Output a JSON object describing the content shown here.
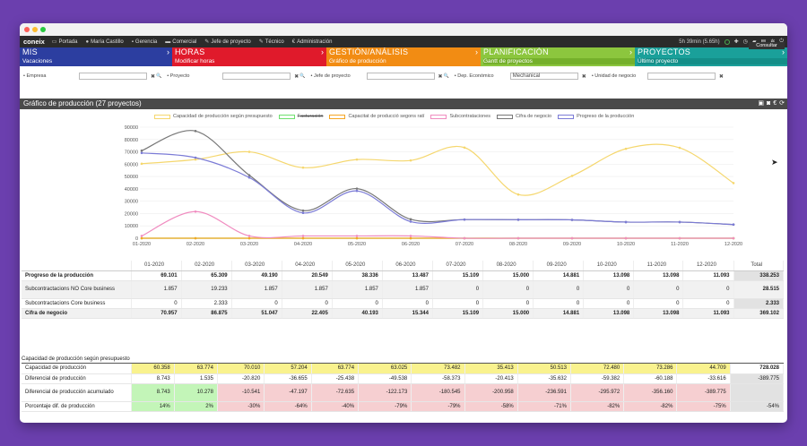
{
  "topnav": {
    "logo": "coneix",
    "items": [
      {
        "label": "Portada",
        "icon": "monitor-icon"
      },
      {
        "label": "María Castillo",
        "icon": "user-icon"
      },
      {
        "label": "Gerencia",
        "icon": "briefcase-icon"
      },
      {
        "label": "Comercial",
        "icon": "shop-icon"
      },
      {
        "label": "Jefe de proyecto",
        "icon": "wrench-icon"
      },
      {
        "label": "Técnico",
        "icon": "tools-icon"
      },
      {
        "label": "Administración",
        "icon": "euro-icon"
      }
    ],
    "time": "5h 39min (5.65h)"
  },
  "modules": [
    {
      "title": "MIS",
      "sub": "Vacaciones",
      "color": "#2c3ea0",
      "subcolor": "#2c3ea0",
      "w": 170
    },
    {
      "title": "HORAS",
      "sub": "Modificar horas",
      "color": "#e01a2b",
      "subcolor": "#e01a2b",
      "w": 172
    },
    {
      "title": "GESTIÓN/ANÁLISIS",
      "sub": "Gráfico de producción",
      "color": "#f28c13",
      "subcolor": "#f28c13",
      "w": 172
    },
    {
      "title": "PLANIFICACIÓN",
      "sub": "Gantt de proyectos",
      "color": "#8cc63e",
      "subcolor": "#75b02b",
      "w": 172
    },
    {
      "title": "PROYECTOS",
      "sub": "Último proyecto",
      "color": "#1aa09a",
      "subcolor": "#138e88",
      "w": 170
    }
  ],
  "filters": [
    {
      "label": "Empresa",
      "value": ""
    },
    {
      "label": "Proyecto",
      "value": ""
    },
    {
      "label": "Jefe de proyecto",
      "value": ""
    },
    {
      "label": "Dep. Económico",
      "value": "Mechanical"
    },
    {
      "label": "Unidad de negocio",
      "value": ""
    }
  ],
  "consultar_label": "Consultar",
  "panel_title": "Gráfico de producción (27 proyectos)",
  "chart_data": {
    "type": "line",
    "categories": [
      "01-2020",
      "02-2020",
      "03-2020",
      "04-2020",
      "05-2020",
      "06-2020",
      "07-2020",
      "08-2020",
      "09-2020",
      "10-2020",
      "11-2020",
      "12-2020"
    ],
    "ylim": [
      0,
      90000
    ],
    "yticks": [
      "0",
      "10000",
      "20000",
      "30000",
      "40000",
      "50000",
      "60000",
      "70000",
      "80000",
      "90000"
    ],
    "series": [
      {
        "name": "Capacidad de producción según presupuesto",
        "color": "#f5d76e",
        "values": [
          60358,
          63774,
          70010,
          57204,
          63774,
          63025,
          73482,
          35413,
          50513,
          72480,
          73286,
          44709
        ]
      },
      {
        "name": "Facturación",
        "color": "#6ee06e",
        "values": [
          0,
          0,
          0,
          0,
          0,
          0,
          0,
          0,
          0,
          0,
          0,
          0
        ]
      },
      {
        "name": "Capacitat de producció segons ratí",
        "color": "#f5a623",
        "values": [
          0,
          0,
          0,
          0,
          0,
          0,
          0,
          0,
          0,
          0,
          0,
          0
        ]
      },
      {
        "name": "Subcontrataciones",
        "color": "#f08cc0",
        "values": [
          1857,
          21566,
          1857,
          1857,
          1857,
          1857,
          0,
          0,
          0,
          0,
          0,
          0
        ]
      },
      {
        "name": "Cifra de negocio",
        "color": "#777777",
        "values": [
          70957,
          86875,
          51047,
          22405,
          40193,
          15344,
          15109,
          15000,
          14881,
          13098,
          13098,
          11093
        ]
      },
      {
        "name": "Progreso de la producción",
        "color": "#7b7bd6",
        "values": [
          69101,
          65309,
          49190,
          20549,
          38336,
          13487,
          15109,
          15000,
          14881,
          13098,
          13098,
          11093
        ]
      }
    ]
  },
  "table1": {
    "headers": [
      "01-2020",
      "02-2020",
      "03-2020",
      "04-2020",
      "05-2020",
      "06-2020",
      "07-2020",
      "08-2020",
      "09-2020",
      "10-2020",
      "11-2020",
      "12-2020",
      "Total"
    ],
    "rows": [
      {
        "label": "Progreso de la producción",
        "bold": true,
        "values": [
          "69.101",
          "65.309",
          "49.190",
          "20.549",
          "38.336",
          "13.487",
          "15.109",
          "15.000",
          "14.881",
          "13.098",
          "13.098",
          "11.093",
          "338.253"
        ]
      },
      {
        "label": "Subcontractacions NO Core business",
        "values": [
          "1.857",
          "19.233",
          "1.857",
          "1.857",
          "1.857",
          "1.857",
          "0",
          "0",
          "0",
          "0",
          "0",
          "0",
          "28.515"
        ]
      },
      {
        "label": "Subcontractacions Core business",
        "values": [
          "0",
          "2.333",
          "0",
          "0",
          "0",
          "0",
          "0",
          "0",
          "0",
          "0",
          "0",
          "0",
          "2.333"
        ]
      },
      {
        "label": "Cifra de negocio",
        "bold": true,
        "values": [
          "70.957",
          "86.875",
          "51.047",
          "22.405",
          "40.193",
          "15.344",
          "15.109",
          "15.000",
          "14.881",
          "13.098",
          "13.098",
          "11.093",
          "369.102"
        ]
      }
    ]
  },
  "section_title": "Capacidad de producción según presupuesto",
  "table2": {
    "rows": [
      {
        "label": "Capacidad de producción",
        "values": [
          "60.358",
          "63.774",
          "70.010",
          "57.204",
          "63.774",
          "63.025",
          "73.482",
          "35.413",
          "50.513",
          "72.480",
          "73.286",
          "44.709",
          "728.028"
        ]
      },
      {
        "label": "Diferencial de producción",
        "values": [
          "8.743",
          "1.535",
          "-20.820",
          "-36.655",
          "-25.438",
          "-49.538",
          "-58.373",
          "-20.413",
          "-35.632",
          "-59.382",
          "-60.188",
          "-33.616",
          "-389.775"
        ]
      },
      {
        "label": "Diferencial de producción acumulado",
        "values": [
          "8.743",
          "10.278",
          "-10.541",
          "-47.197",
          "-72.635",
          "-122.173",
          "-180.545",
          "-200.958",
          "-236.591",
          "-295.972",
          "-356.160",
          "-389.775",
          ""
        ]
      },
      {
        "label": "Porcentaje dif. de producción",
        "values": [
          "14%",
          "2%",
          "-30%",
          "-64%",
          "-40%",
          "-79%",
          "-79%",
          "-58%",
          "-71%",
          "-82%",
          "-82%",
          "-75%",
          "-54%"
        ]
      }
    ]
  }
}
